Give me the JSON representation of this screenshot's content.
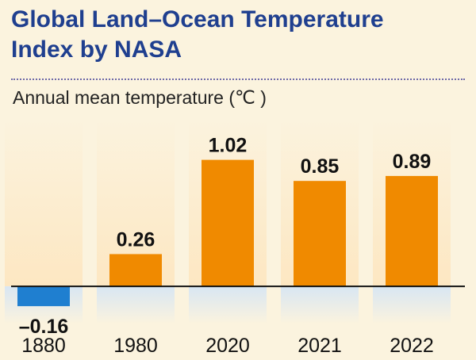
{
  "header": {
    "title_line1": "Global Land–Ocean Temperature",
    "title_line2": "Index by NASA",
    "subtitle": "Annual mean temperature (℃ )"
  },
  "colors": {
    "title": "#1f3f8f",
    "positive_bar": "#f08a00",
    "negative_bar": "#1f7fd0",
    "baseline": "#111111"
  },
  "chart_data": {
    "type": "bar",
    "title": "Global Land–Ocean Temperature Index by NASA",
    "ylabel": "Annual mean temperature (℃ )",
    "categories": [
      "1880",
      "1980",
      "2020",
      "2021",
      "2022"
    ],
    "values": [
      -0.16,
      0.26,
      1.02,
      0.85,
      0.89
    ],
    "value_labels": [
      "–0.16",
      "0.26",
      "1.02",
      "0.85",
      "0.89"
    ],
    "ylim": [
      -0.3,
      1.35
    ],
    "grid": false,
    "legend": "none"
  }
}
